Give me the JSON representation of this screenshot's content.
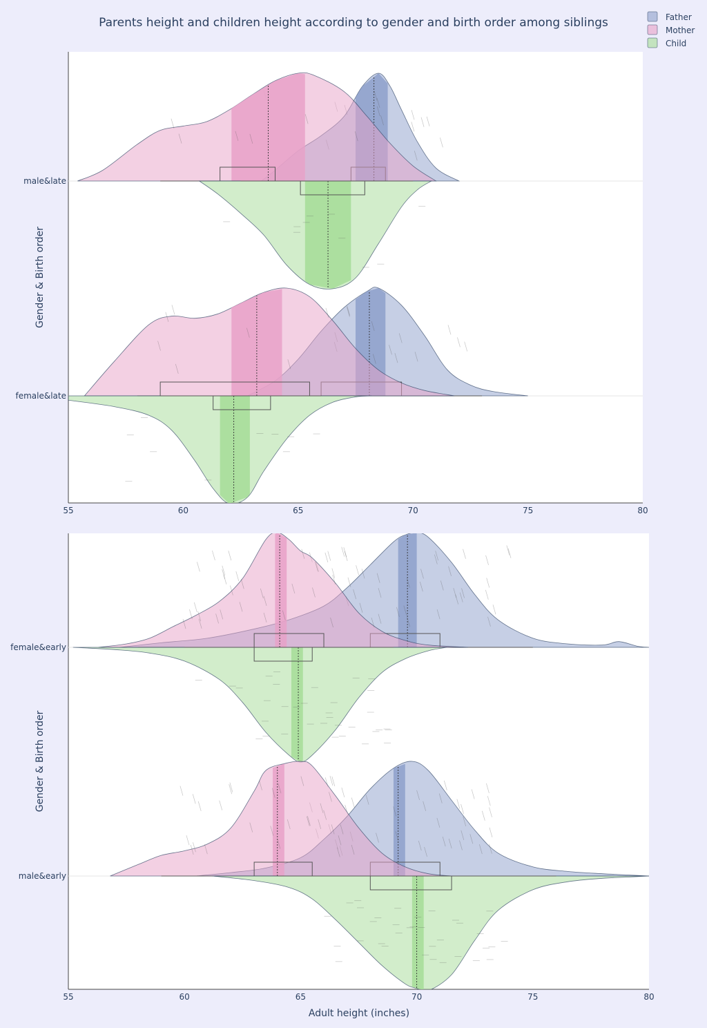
{
  "chart_data": {
    "type": "violin",
    "title": "Parents height and children height according to gender and birth order among siblings",
    "xlabel": "Adult height (inches)",
    "ylabel": "Gender & Birth order",
    "xlim": [
      55,
      80
    ],
    "xticks": [
      55,
      60,
      65,
      70,
      75,
      80
    ],
    "legend_position": "top-right",
    "series": [
      {
        "name": "Father",
        "color": "#8da0cb"
      },
      {
        "name": "Mother",
        "color": "#e7a1c8"
      },
      {
        "name": "Child",
        "color": "#a6dc98"
      }
    ],
    "panels": [
      {
        "categories": [
          "male&late",
          "female&late"
        ],
        "violins": [
          {
            "category": "male&late",
            "series": "Father",
            "side": "positive",
            "x": [
              63.4,
              64,
              65,
              66,
              67,
              67.8,
              68.5,
              69,
              69.5,
              70.2,
              71,
              72
            ],
            "density": [
              0.0,
              0.1,
              0.28,
              0.42,
              0.6,
              0.88,
              1.0,
              0.88,
              0.66,
              0.36,
              0.12,
              0.0
            ],
            "mean": 68.3,
            "iqr": [
              67.5,
              68.9
            ],
            "box": [
              67.3,
              68.8
            ],
            "whisker": [
              64.0,
              70.0
            ]
          },
          {
            "category": "male&late",
            "series": "Mother",
            "side": "positive",
            "x": [
              55.4,
              56.5,
              58,
              59,
              60,
              61,
              62,
              63,
              64,
              65,
              65.7,
              67,
              68,
              69,
              70,
              71
            ],
            "density": [
              0.0,
              0.1,
              0.34,
              0.47,
              0.51,
              0.55,
              0.66,
              0.8,
              0.93,
              1.0,
              0.98,
              0.83,
              0.6,
              0.35,
              0.14,
              0.0
            ],
            "mean": 63.7,
            "iqr": [
              62.1,
              65.3
            ],
            "box": [
              61.6,
              64.0
            ],
            "whisker": [
              59.0,
              66.5
            ]
          },
          {
            "category": "male&late",
            "series": "Child",
            "side": "negative",
            "x": [
              60.7,
              61.5,
              62.5,
              63.5,
              64.5,
              65.5,
              66.5,
              67.5,
              68.5,
              69.5,
              70.2,
              70.8
            ],
            "density": [
              0.0,
              0.12,
              0.3,
              0.5,
              0.78,
              0.96,
              1.0,
              0.9,
              0.58,
              0.24,
              0.08,
              0.0
            ],
            "mean": 66.3,
            "iqr": [
              65.3,
              67.3
            ],
            "box": [
              65.1,
              67.9
            ],
            "whisker": [
              62.5,
              70.0
            ]
          },
          {
            "category": "female&late",
            "series": "Father",
            "side": "positive",
            "x": [
              62.8,
              64,
              65,
              66,
              67,
              68,
              68.5,
              69.5,
              70.5,
              71.5,
              72.5,
              73.5,
              75
            ],
            "density": [
              0.0,
              0.14,
              0.34,
              0.6,
              0.82,
              0.97,
              1.0,
              0.84,
              0.56,
              0.24,
              0.1,
              0.04,
              0.0
            ],
            "mean": 68.1,
            "iqr": [
              67.5,
              68.8
            ],
            "box": [
              66.0,
              69.5
            ],
            "whisker": [
              63.0,
              73.0
            ]
          },
          {
            "category": "female&late",
            "series": "Mother",
            "side": "positive",
            "x": [
              55.7,
              57,
              58.5,
              59.5,
              60.5,
              61.5,
              62.5,
              63.5,
              64.5,
              65.5,
              66.5,
              67.5,
              68.5,
              69.5,
              70.5,
              71.8
            ],
            "density": [
              0.0,
              0.32,
              0.66,
              0.74,
              0.72,
              0.76,
              0.86,
              0.96,
              1.0,
              0.92,
              0.7,
              0.44,
              0.24,
              0.12,
              0.05,
              0.0
            ],
            "mean": 63.2,
            "iqr": [
              62.1,
              64.3
            ],
            "box": [
              59.0,
              65.5
            ],
            "whisker": [
              58.0,
              68.0
            ]
          },
          {
            "category": "female&late",
            "series": "Child",
            "side": "negative",
            "x": [
              55.0,
              57,
              58.5,
              59.5,
              60.5,
              61.3,
              62,
              62.8,
              63.5,
              64.5,
              65.5,
              66.5,
              67.5,
              68.2
            ],
            "density": [
              0.04,
              0.1,
              0.18,
              0.32,
              0.6,
              0.86,
              1.0,
              0.94,
              0.7,
              0.4,
              0.18,
              0.06,
              0.01,
              0.0
            ],
            "mean": 62.2,
            "iqr": [
              61.6,
              62.9
            ],
            "box": [
              61.3,
              63.8
            ],
            "whisker": [
              59.0,
              66.0
            ]
          }
        ]
      },
      {
        "categories": [
          "female&early",
          "male&early"
        ],
        "violins": [
          {
            "category": "female&early",
            "series": "Father",
            "side": "positive",
            "x": [
              57.2,
              59,
              61,
              63,
              64.5,
              66,
              67,
              68,
              69,
              69.5,
              70,
              70.5,
              71.5,
              72.5,
              73.5,
              75,
              76.5,
              78,
              78.7,
              79.5,
              80
            ],
            "density": [
              0.0,
              0.04,
              0.08,
              0.16,
              0.24,
              0.36,
              0.52,
              0.72,
              0.92,
              0.98,
              1.0,
              0.96,
              0.74,
              0.46,
              0.24,
              0.08,
              0.03,
              0.02,
              0.05,
              0.01,
              0.0
            ],
            "mean": 69.6,
            "iqr": [
              69.2,
              70.0
            ],
            "box": [
              68.0,
              71.0
            ],
            "whisker": [
              62.0,
              75.0
            ]
          },
          {
            "category": "female&early",
            "series": "Mother",
            "side": "positive",
            "x": [
              56.3,
              57.5,
              58.5,
              59.5,
              60.5,
              61.5,
              62.5,
              63.5,
              64,
              64.5,
              65,
              65.5,
              66.5,
              67.5,
              68.5,
              69.5,
              70.5,
              72.2
            ],
            "density": [
              0.0,
              0.03,
              0.08,
              0.18,
              0.28,
              0.4,
              0.6,
              0.94,
              1.0,
              0.94,
              0.84,
              0.78,
              0.56,
              0.3,
              0.14,
              0.06,
              0.02,
              0.0
            ],
            "mean": 64.1,
            "iqr": [
              63.9,
              64.4
            ],
            "box": [
              63.0,
              66.0
            ],
            "whisker": [
              58.0,
              69.0
            ]
          },
          {
            "category": "female&early",
            "series": "Child",
            "side": "negative",
            "x": [
              55.2,
              57,
              58.5,
              60,
              61.5,
              62.5,
              63.5,
              64.5,
              65,
              65.5,
              66.5,
              67.5,
              68.5,
              69.5,
              70.5,
              71.3
            ],
            "density": [
              0.0,
              0.02,
              0.05,
              0.12,
              0.28,
              0.48,
              0.74,
              0.94,
              1.0,
              0.94,
              0.72,
              0.44,
              0.22,
              0.1,
              0.03,
              0.0
            ],
            "mean": 64.9,
            "iqr": [
              64.6,
              65.1
            ],
            "box": [
              63.0,
              65.5
            ],
            "whisker": [
              60.0,
              69.0
            ]
          },
          {
            "category": "male&early",
            "series": "Father",
            "side": "positive",
            "x": [
              60.5,
              62,
              63.5,
              65,
              66,
              67,
              68,
              69,
              69.8,
              70.5,
              71.5,
              72.5,
              73.5,
              75,
              76.5,
              78,
              79,
              80
            ],
            "density": [
              0.0,
              0.03,
              0.07,
              0.16,
              0.32,
              0.52,
              0.76,
              0.94,
              1.0,
              0.92,
              0.66,
              0.4,
              0.2,
              0.08,
              0.04,
              0.02,
              0.01,
              0.0
            ],
            "mean": 69.2,
            "iqr": [
              69.0,
              69.5
            ],
            "box": [
              68.0,
              71.0
            ],
            "whisker": [
              62.0,
              75.0
            ]
          },
          {
            "category": "male&early",
            "series": "Mother",
            "side": "positive",
            "x": [
              56.8,
              58,
              59,
              60,
              61,
              62,
              63,
              63.5,
              64.3,
              65,
              65.5,
              66.5,
              67.5,
              68.5,
              69.5,
              70.5,
              71.5
            ],
            "density": [
              0.0,
              0.1,
              0.18,
              0.22,
              0.28,
              0.42,
              0.74,
              0.92,
              0.98,
              1.0,
              0.96,
              0.7,
              0.42,
              0.2,
              0.08,
              0.02,
              0.0
            ],
            "mean": 64.0,
            "iqr": [
              63.8,
              64.3
            ],
            "box": [
              63.0,
              65.5
            ],
            "whisker": [
              59.0,
              68.0
            ]
          },
          {
            "category": "male&early",
            "series": "Child",
            "side": "negative",
            "x": [
              61.2,
              63,
              64.5,
              65.5,
              66.5,
              67.5,
              68.5,
              69.5,
              70,
              70.5,
              71.5,
              72.5,
              73.5,
              75,
              76.5,
              78,
              79,
              80
            ],
            "density": [
              0.0,
              0.04,
              0.1,
              0.2,
              0.38,
              0.58,
              0.78,
              0.94,
              0.98,
              1.0,
              0.86,
              0.56,
              0.3,
              0.12,
              0.05,
              0.02,
              0.01,
              0.0
            ],
            "mean": 70.0,
            "iqr": [
              69.8,
              70.3
            ],
            "box": [
              68.0,
              71.5
            ],
            "whisker": [
              64.0,
              76.0
            ]
          }
        ]
      }
    ]
  }
}
